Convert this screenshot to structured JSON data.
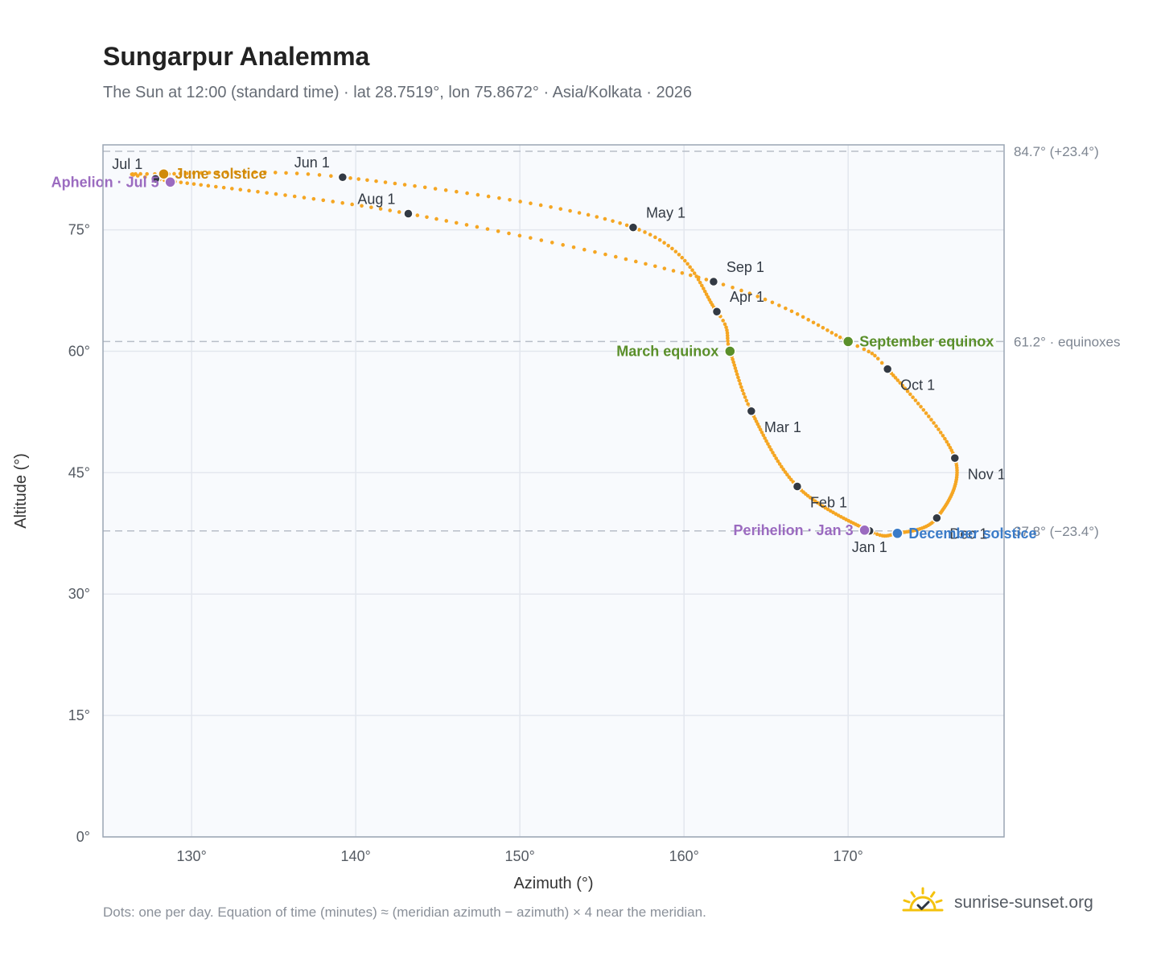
{
  "header": {
    "title": "Sungarpur Analemma",
    "subtitle": "The Sun at 12:00 (standard time) · lat 28.7519°, lon 75.8672° · Asia/Kolkata · 2026"
  },
  "footer": {
    "note": "Dots: one per day. Equation of time (minutes) ≈ (meridian azimuth − azimuth) × 4 near the meridian.",
    "brand": "sunrise-sunset.org"
  },
  "colors": {
    "path": "#f5a623",
    "month_marker": "#333a44",
    "solstice_june": "#d08a0b",
    "solstice_december": "#3a7bc8",
    "equinox": "#5a8f2a",
    "apsis": "#9b6bc0",
    "plot_bg": "#f8fafd",
    "grid": "#e3e7ee",
    "reference_line": "#b7bec8",
    "axis_frame": "#9aa5b4"
  },
  "chart_data": {
    "type": "scatter",
    "xlabel": "Azimuth (°)",
    "ylabel": "Altitude (°)",
    "xlim": [
      124.6,
      179.5
    ],
    "ylim": [
      0,
      85.5
    ],
    "x_ticks": [
      {
        "value": 130,
        "label": "130°"
      },
      {
        "value": 140,
        "label": "140°"
      },
      {
        "value": 150,
        "label": "150°"
      },
      {
        "value": 160,
        "label": "160°"
      },
      {
        "value": 170,
        "label": "170°"
      }
    ],
    "y_ticks": [
      {
        "value": 0,
        "label": "0°"
      },
      {
        "value": 15,
        "label": "15°"
      },
      {
        "value": 30,
        "label": "30°"
      },
      {
        "value": 45,
        "label": "45°"
      },
      {
        "value": 60,
        "label": "60°"
      },
      {
        "value": 75,
        "label": "75°"
      }
    ],
    "grid": true,
    "reference_lines": [
      {
        "altitude": 84.7,
        "label": "84.7° (+23.4°)"
      },
      {
        "altitude": 61.2,
        "label": "61.2° · equinoxes"
      },
      {
        "altitude": 37.8,
        "label": "37.8° (−23.4°)"
      }
    ],
    "daily_path_anchors": [
      {
        "date": "Jan 1",
        "azimuth": 171.3,
        "altitude": 37.8
      },
      {
        "date": "Feb 1",
        "azimuth": 166.9,
        "altitude": 43.3
      },
      {
        "date": "Mar 1",
        "azimuth": 164.1,
        "altitude": 52.6
      },
      {
        "date": "Mar 20",
        "azimuth": 162.8,
        "altitude": 60.0
      },
      {
        "date": "Apr 1",
        "azimuth": 162.0,
        "altitude": 64.9
      },
      {
        "date": "May 1",
        "azimuth": 156.9,
        "altitude": 75.3
      },
      {
        "date": "Jun 1",
        "azimuth": 139.2,
        "altitude": 81.5
      },
      {
        "date": "Jun 21",
        "azimuth": 128.3,
        "altitude": 81.9
      },
      {
        "date": "Jul 1",
        "azimuth": 127.8,
        "altitude": 81.3
      },
      {
        "date": "Aug 1",
        "azimuth": 143.2,
        "altitude": 77.0
      },
      {
        "date": "Sep 1",
        "azimuth": 161.8,
        "altitude": 68.6
      },
      {
        "date": "Sep 23",
        "azimuth": 170.0,
        "altitude": 61.2
      },
      {
        "date": "Oct 1",
        "azimuth": 172.4,
        "altitude": 57.8
      },
      {
        "date": "Nov 1",
        "azimuth": 176.5,
        "altitude": 46.8
      },
      {
        "date": "Dec 1",
        "azimuth": 175.4,
        "altitude": 39.4
      },
      {
        "date": "Dec 21",
        "azimuth": 173.0,
        "altitude": 37.5
      },
      {
        "date": "Jan 1",
        "azimuth": 171.3,
        "altitude": 37.8
      }
    ],
    "month_markers": [
      {
        "label": "Jan 1",
        "azimuth": 171.3,
        "altitude": 37.8,
        "label_pos": "below"
      },
      {
        "label": "Feb 1",
        "azimuth": 166.9,
        "altitude": 43.3,
        "label_pos": "below-right"
      },
      {
        "label": "Mar 1",
        "azimuth": 164.1,
        "altitude": 52.6,
        "label_pos": "below-right"
      },
      {
        "label": "Apr 1",
        "azimuth": 162.0,
        "altitude": 64.9,
        "label_pos": "above-right"
      },
      {
        "label": "May 1",
        "azimuth": 156.9,
        "altitude": 75.3,
        "label_pos": "above-right"
      },
      {
        "label": "Jun 1",
        "azimuth": 139.2,
        "altitude": 81.5,
        "label_pos": "above-left"
      },
      {
        "label": "Jul 1",
        "azimuth": 127.8,
        "altitude": 81.3,
        "label_pos": "above-left"
      },
      {
        "label": "Aug 1",
        "azimuth": 143.2,
        "altitude": 77.0,
        "label_pos": "above-left"
      },
      {
        "label": "Sep 1",
        "azimuth": 161.8,
        "altitude": 68.6,
        "label_pos": "above-right"
      },
      {
        "label": "Oct 1",
        "azimuth": 172.4,
        "altitude": 57.8,
        "label_pos": "below-right"
      },
      {
        "label": "Nov 1",
        "azimuth": 176.5,
        "altitude": 46.8,
        "label_pos": "below-right"
      },
      {
        "label": "Dec 1",
        "azimuth": 175.4,
        "altitude": 39.4,
        "label_pos": "below-right"
      }
    ],
    "events": [
      {
        "label": "June solstice",
        "azimuth": 128.3,
        "altitude": 81.9,
        "color_key": "solstice_june",
        "label_pos": "right"
      },
      {
        "label": "Aphelion · Jul 5",
        "azimuth": 128.7,
        "altitude": 80.9,
        "color_key": "apsis",
        "label_pos": "left"
      },
      {
        "label": "March equinox",
        "azimuth": 162.8,
        "altitude": 60.0,
        "color_key": "equinox",
        "label_pos": "left"
      },
      {
        "label": "September equinox",
        "azimuth": 170.0,
        "altitude": 61.2,
        "color_key": "equinox",
        "label_pos": "right"
      },
      {
        "label": "Perihelion · Jan 3",
        "azimuth": 171.0,
        "altitude": 37.9,
        "color_key": "apsis",
        "label_pos": "left"
      },
      {
        "label": "December solstice",
        "azimuth": 173.0,
        "altitude": 37.5,
        "color_key": "solstice_december",
        "label_pos": "right"
      }
    ]
  }
}
